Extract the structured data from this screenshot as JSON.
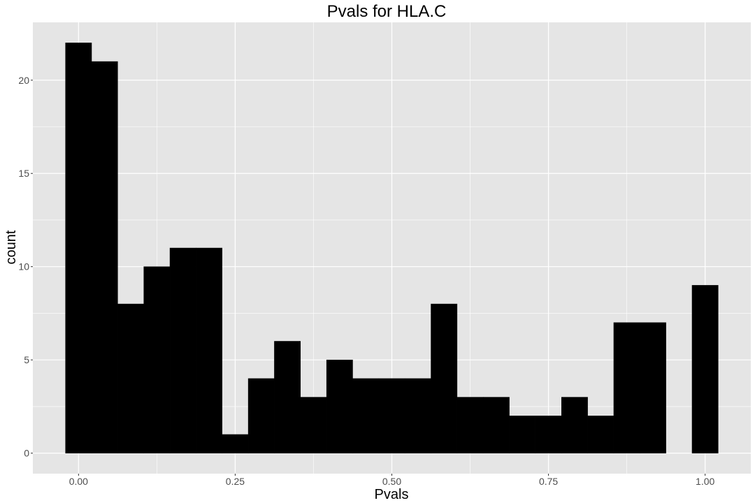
{
  "chart_data": {
    "type": "bar",
    "title": "Pvals for HLA.C",
    "xlabel": "Pvals",
    "ylabel": "count",
    "bin_width": 0.0416667,
    "bins": [
      {
        "center": 0.0,
        "count": 22
      },
      {
        "center": 0.04167,
        "count": 21
      },
      {
        "center": 0.08333,
        "count": 8
      },
      {
        "center": 0.125,
        "count": 10
      },
      {
        "center": 0.16667,
        "count": 11
      },
      {
        "center": 0.20833,
        "count": 11
      },
      {
        "center": 0.25,
        "count": 1
      },
      {
        "center": 0.29167,
        "count": 4
      },
      {
        "center": 0.33333,
        "count": 6
      },
      {
        "center": 0.375,
        "count": 3
      },
      {
        "center": 0.41667,
        "count": 5
      },
      {
        "center": 0.45833,
        "count": 4
      },
      {
        "center": 0.5,
        "count": 4
      },
      {
        "center": 0.54167,
        "count": 4
      },
      {
        "center": 0.58333,
        "count": 8
      },
      {
        "center": 0.625,
        "count": 3
      },
      {
        "center": 0.66667,
        "count": 3
      },
      {
        "center": 0.70833,
        "count": 2
      },
      {
        "center": 0.75,
        "count": 2
      },
      {
        "center": 0.79167,
        "count": 3
      },
      {
        "center": 0.83333,
        "count": 2
      },
      {
        "center": 0.875,
        "count": 7
      },
      {
        "center": 0.91667,
        "count": 7
      },
      {
        "center": 0.95833,
        "count": 0
      },
      {
        "center": 1.0,
        "count": 9
      }
    ],
    "x_ticks": [
      {
        "value": 0.0,
        "label": "0.00"
      },
      {
        "value": 0.25,
        "label": "0.25"
      },
      {
        "value": 0.5,
        "label": "0.50"
      },
      {
        "value": 0.75,
        "label": "0.75"
      },
      {
        "value": 1.0,
        "label": "1.00"
      }
    ],
    "y_ticks": [
      {
        "value": 0,
        "label": "0"
      },
      {
        "value": 5,
        "label": "5"
      },
      {
        "value": 10,
        "label": "10"
      },
      {
        "value": 15,
        "label": "15"
      },
      {
        "value": 20,
        "label": "20"
      }
    ],
    "xlim": [
      -0.0729,
      1.0729
    ],
    "ylim": [
      -1.1,
      23.1
    ],
    "grid": true,
    "colors": {
      "panel_background": "#e5e5e5",
      "grid_line": "#ffffff",
      "bar_fill": "#000000"
    }
  }
}
